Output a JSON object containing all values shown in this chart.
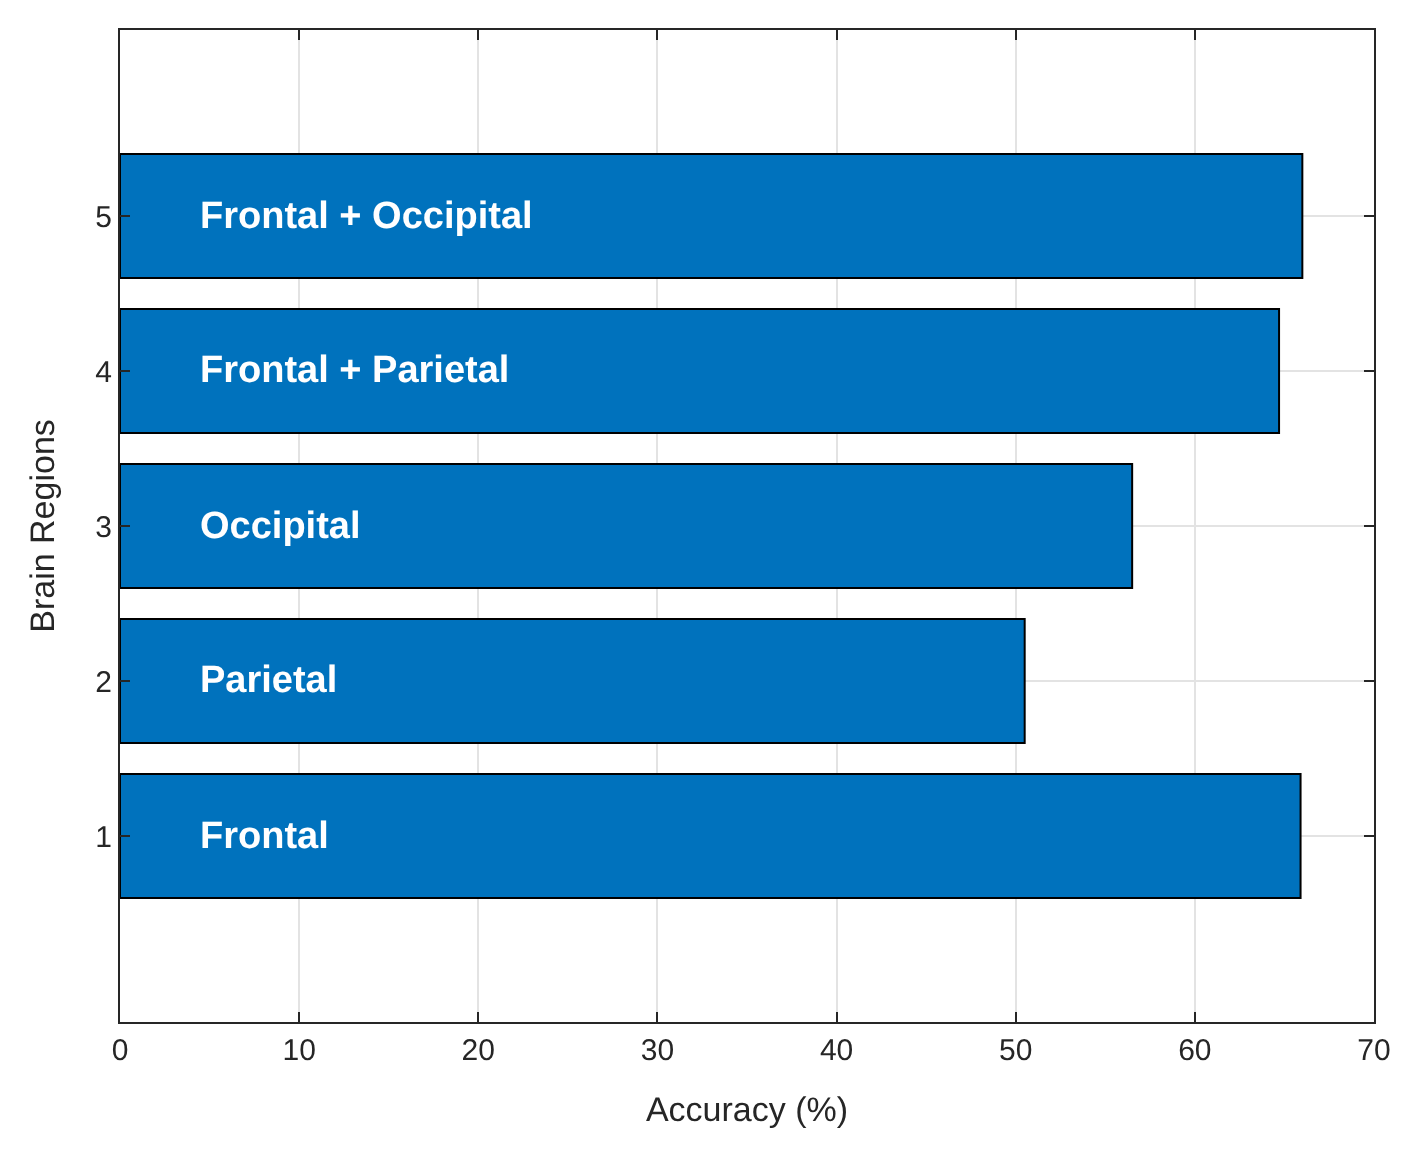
{
  "chart_data": {
    "type": "bar",
    "orientation": "horizontal",
    "xlabel": "Accuracy (%)",
    "ylabel": "Brain Regions",
    "x": [
      1,
      2,
      3,
      4,
      5
    ],
    "values": [
      65.9,
      50.5,
      56.5,
      64.7,
      66.0
    ],
    "color": "#0072bd",
    "xlim": [
      0,
      70
    ],
    "xticks": [
      0,
      10,
      20,
      30,
      40,
      50,
      60,
      70
    ],
    "ylim": [
      -0.2,
      6.2
    ],
    "yticks": [
      1,
      2,
      3,
      4,
      5
    ],
    "grid": true,
    "legend": false,
    "annotations": [
      "Frontal",
      "Parietal",
      "Occipital",
      "Frontal + Parietal",
      "Frontal + Occipital"
    ]
  }
}
